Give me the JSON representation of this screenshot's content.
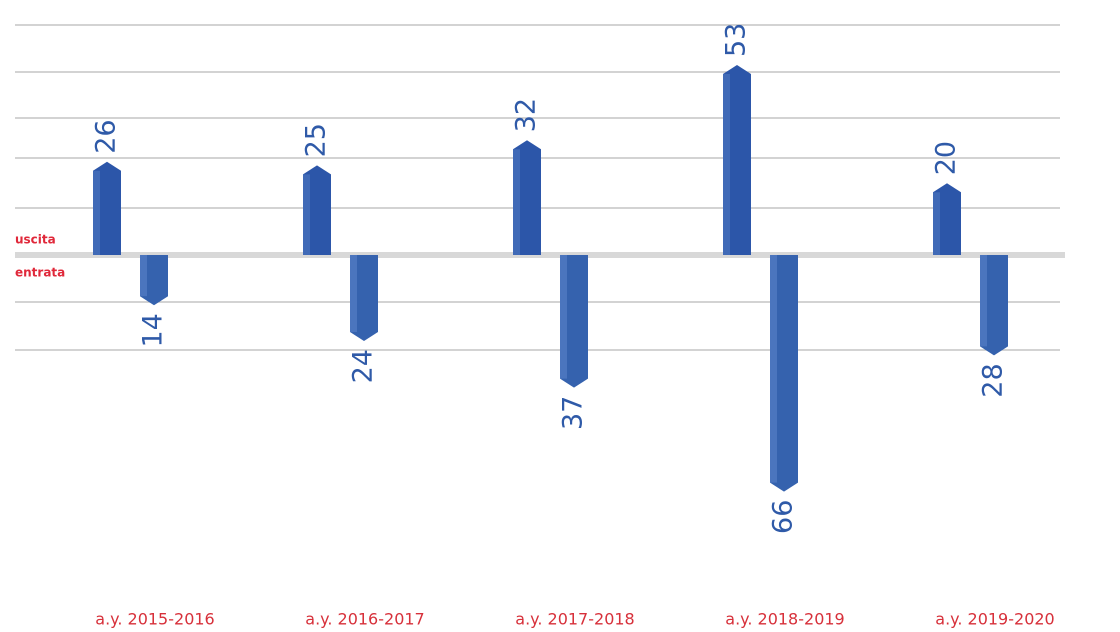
{
  "chart_data": {
    "type": "bar",
    "categories": [
      "a.y. 2015-2016",
      "a.y. 2016-2017",
      "a.y. 2017-2018",
      "a.y. 2018-2019",
      "a.y. 2019-2020"
    ],
    "series": [
      {
        "name": "uscita",
        "color": "#2c56a9",
        "values": [
          26,
          25,
          32,
          53,
          20
        ]
      },
      {
        "name": "entrata",
        "color": "#3562ae",
        "values": [
          14,
          24,
          37,
          66,
          28
        ]
      }
    ],
    "grid": true
  }
}
